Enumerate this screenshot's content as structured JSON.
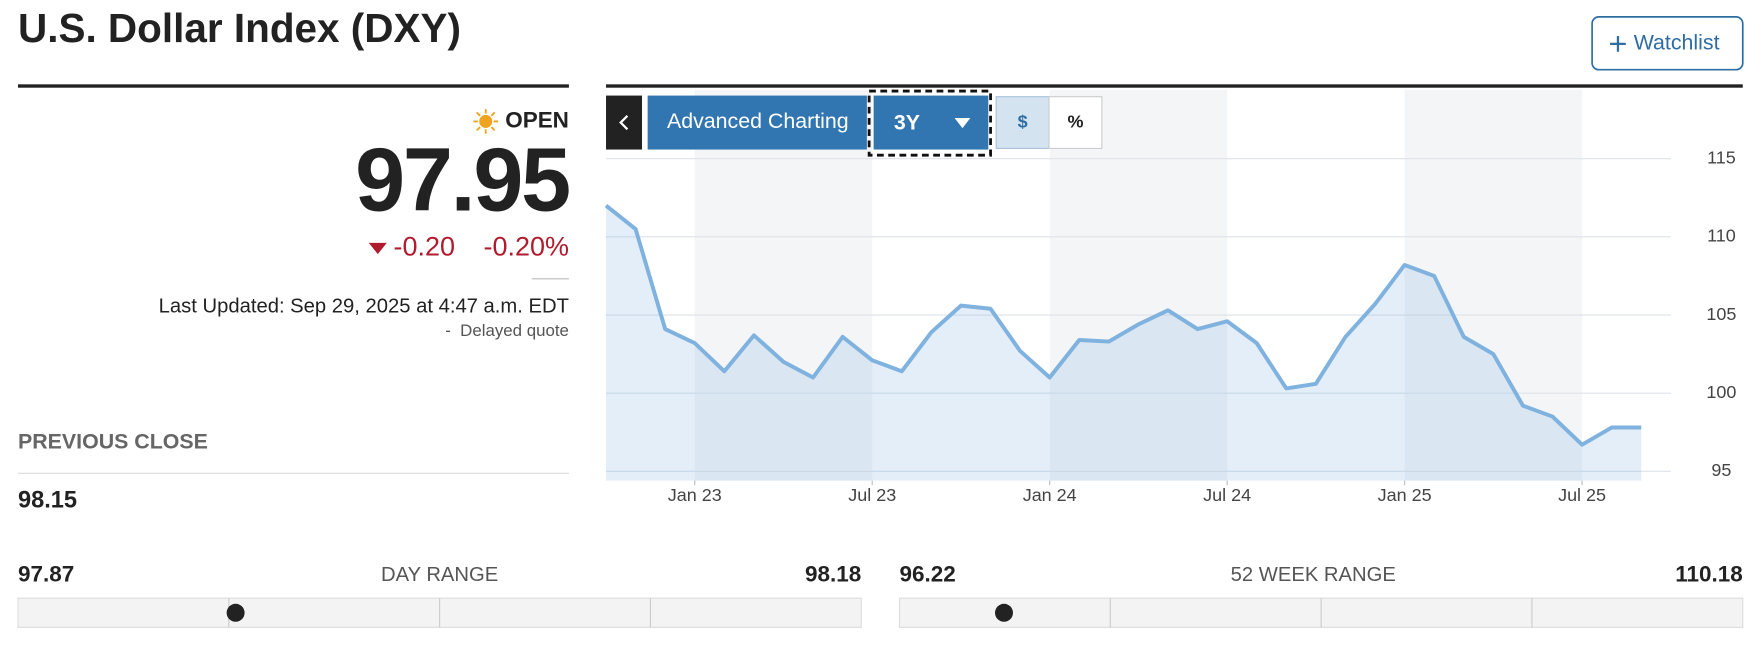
{
  "header": {
    "title": "U.S. Dollar Index (DXY)",
    "watchlist": "Watchlist"
  },
  "quote": {
    "status": "OPEN",
    "price": "97.95",
    "change": "-0.20",
    "change_percent": "-0.20%",
    "last_updated": "Last Updated: Sep 29, 2025 at 4:47 a.m. EDT",
    "delayed": "-  Delayed quote"
  },
  "previous_close": {
    "label": "PREVIOUS CLOSE",
    "value": "98.15"
  },
  "day_range": {
    "label": "DAY RANGE",
    "low": "97.87",
    "high": "98.18"
  },
  "week52_range": {
    "label": "52 WEEK RANGE",
    "low": "96.22",
    "high": "110.18"
  },
  "toolbar": {
    "advanced": "Advanced Charting",
    "period": "3Y",
    "dollar": "$",
    "percent": "%"
  },
  "chart_data": {
    "type": "line",
    "x": [
      "2022-10",
      "2022-11",
      "2022-12",
      "2023-01",
      "2023-02",
      "2023-03",
      "2023-04",
      "2023-05",
      "2023-06",
      "2023-07",
      "2023-08",
      "2023-09",
      "2023-10",
      "2023-11",
      "2023-12",
      "2024-01",
      "2024-02",
      "2024-03",
      "2024-04",
      "2024-05",
      "2024-06",
      "2024-07",
      "2024-08",
      "2024-09",
      "2024-10",
      "2024-11",
      "2024-12",
      "2025-01",
      "2025-02",
      "2025-03",
      "2025-04",
      "2025-05",
      "2025-06",
      "2025-07",
      "2025-08",
      "2025-09"
    ],
    "values": [
      112,
      110.5,
      104.1,
      103.2,
      101.4,
      103.7,
      102,
      101,
      103.6,
      102.1,
      101.4,
      103.9,
      105.6,
      105.4,
      102.7,
      101,
      103.4,
      103.3,
      104.4,
      105.3,
      104.1,
      104.6,
      103.2,
      100.3,
      100.6,
      103.6,
      105.7,
      108.2,
      107.5,
      103.6,
      102.5,
      99.2,
      98.5,
      96.7,
      97.8,
      97.8
    ],
    "color": "#7fb2de",
    "xlim": [
      "2022-10",
      "2025-10"
    ],
    "xticks": [
      {
        "value": "2023-01",
        "label": "Jan 23"
      },
      {
        "value": "2023-07",
        "label": "Jul 23"
      },
      {
        "value": "2024-01",
        "label": "Jan 24"
      },
      {
        "value": "2024-07",
        "label": "Jul 24"
      },
      {
        "value": "2025-01",
        "label": "Jan 25"
      },
      {
        "value": "2025-07",
        "label": "Jul 25"
      }
    ],
    "ylim": [
      94.4,
      119.4
    ],
    "yticks": [
      95,
      100,
      105,
      110,
      115
    ],
    "grid": true
  }
}
